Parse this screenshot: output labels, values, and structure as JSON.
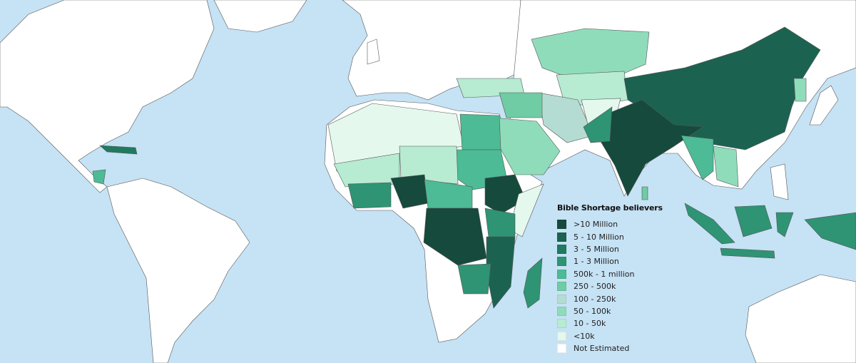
{
  "colors": {
    "ocean": "#c6e2f5",
    "land": "#ffffff",
    "border": "#555555"
  },
  "legend": {
    "title": "Bible Shortage believers",
    "items": [
      {
        "label": ">10 Million",
        "color": "#154a3c"
      },
      {
        "label": "5 - 10 Million",
        "color": "#1b6350"
      },
      {
        "label": "3 - 5 Million",
        "color": "#217a60"
      },
      {
        "label": "1 - 3 Million",
        "color": "#2e9474"
      },
      {
        "label": "500k - 1 million",
        "color": "#4dbb95"
      },
      {
        "label": "250 - 500k",
        "color": "#6fcca4"
      },
      {
        "label": "100 - 250k",
        "color": "#b5dcd2"
      },
      {
        "label": "50 - 100k",
        "color": "#8fdcbb"
      },
      {
        "label": "10 - 50k",
        "color": "#b7ebd2"
      },
      {
        "label": "<10k",
        "color": "#e5f8ee"
      },
      {
        "label": "Not Estimated",
        "color": "#ffffff"
      }
    ]
  },
  "region_levels": {
    "russia-kazakh": 7,
    "central-asia": 8,
    "iran": 6,
    "turkey": 8,
    "afghanistan": 9,
    "china": 1,
    "india": 0,
    "pakistan": 3,
    "myanmar": 4,
    "indochina": 7,
    "sumatra": 3,
    "borneo": 3,
    "java": 3,
    "sulawesi": 3,
    "new-guinea": 3,
    "korea": 7,
    "arabia": 7,
    "iraq-syria": 5,
    "north-africa": 9,
    "egypt": 4,
    "sudan": 4,
    "chad-niger": 8,
    "west-africa": 8,
    "nigeria": 0,
    "ghana-coast": 3,
    "central-african": 4,
    "ethiopia": 0,
    "somalia": 9,
    "drc": 0,
    "kenya-uganda": 3,
    "tanzania-mozambique": 1,
    "zambia-angola": 3,
    "madagascar": 3,
    "cuba": 2,
    "nicaragua": 4,
    "sri-lanka": 5
  }
}
